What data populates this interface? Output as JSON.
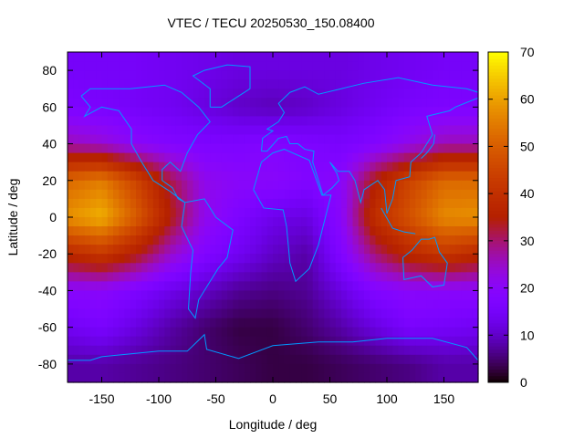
{
  "chart_data": {
    "type": "heatmap",
    "title": "VTEC / TECU 20250530_150.08400",
    "xlabel": "Longitude / deg",
    "ylabel": "Latitude / deg",
    "xlim": [
      -180,
      180
    ],
    "ylim": [
      -90,
      90
    ],
    "xticks": [
      -150,
      -100,
      -50,
      0,
      50,
      100,
      150
    ],
    "yticks": [
      -80,
      -60,
      -40,
      -20,
      0,
      20,
      40,
      60,
      80
    ],
    "colorbar": {
      "range": [
        0,
        70
      ],
      "ticks": [
        0,
        10,
        20,
        30,
        40,
        50,
        60,
        70
      ],
      "palette": "black-blue-purple-red-yellow"
    },
    "coastline_color": "#0099ff",
    "grid_lon": [
      -180,
      -150,
      -120,
      -90,
      -60,
      -30,
      0,
      30,
      60,
      90,
      120,
      150,
      180
    ],
    "grid_lat": [
      80,
      60,
      40,
      20,
      0,
      -20,
      -40,
      -60,
      -80
    ],
    "values": [
      [
        15,
        15,
        15,
        14,
        13,
        12,
        12,
        12,
        12,
        13,
        14,
        15,
        15
      ],
      [
        17,
        16,
        15,
        14,
        12,
        10,
        9,
        10,
        12,
        14,
        16,
        17,
        17
      ],
      [
        26,
        24,
        20,
        18,
        17,
        17,
        18,
        17,
        16,
        18,
        22,
        26,
        26
      ],
      [
        52,
        55,
        45,
        32,
        22,
        20,
        20,
        18,
        20,
        35,
        45,
        52,
        52
      ],
      [
        58,
        62,
        50,
        35,
        22,
        17,
        13,
        12,
        20,
        40,
        48,
        57,
        58
      ],
      [
        38,
        42,
        35,
        25,
        18,
        14,
        10,
        8,
        18,
        30,
        38,
        42,
        38
      ],
      [
        20,
        20,
        17,
        13,
        10,
        7,
        6,
        7,
        12,
        18,
        20,
        20,
        20
      ],
      [
        14,
        16,
        12,
        8,
        5,
        3,
        3,
        5,
        8,
        12,
        16,
        15,
        14
      ],
      [
        8,
        8,
        7,
        6,
        5,
        4,
        3,
        3,
        4,
        5,
        6,
        8,
        8
      ]
    ]
  }
}
